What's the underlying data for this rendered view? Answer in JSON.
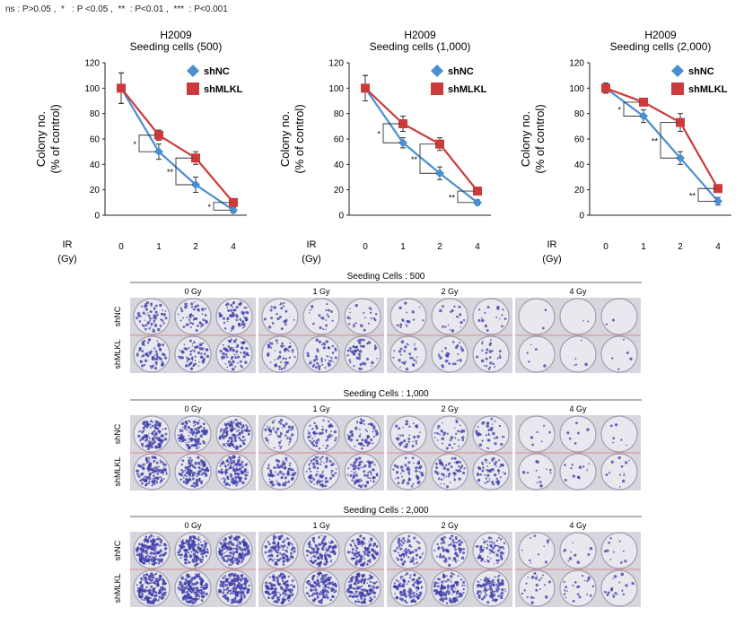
{
  "note": "ns : P>0.05 ,  *   : P <0.05 ,  **  : P<0.01 ,  ***  : P<0.001",
  "colors": {
    "shNC": "#4a8fd0",
    "shMLKL": "#cc3b3b",
    "axis": "#222222",
    "well": "#e8e8ee",
    "colony": "#3b3ba8"
  },
  "chart_data": [
    {
      "type": "line",
      "title": "H2009",
      "subtitle": "Seeding cells (500)",
      "ylabel": "Colony no.",
      "ylabel2": "(% of control)",
      "xlabel": "IR",
      "xlabel2": "(Gy)",
      "categories": [
        "0",
        "1",
        "2",
        "4"
      ],
      "ylim": [
        0,
        120
      ],
      "yticks": [
        0,
        20,
        40,
        60,
        80,
        100,
        120
      ],
      "series": [
        {
          "name": "shNC",
          "values": [
            100,
            50,
            24,
            4
          ],
          "err": [
            12,
            6,
            6,
            2
          ]
        },
        {
          "name": "shMLKL",
          "values": [
            100,
            63,
            45,
            10
          ],
          "err": [
            12,
            4,
            5,
            2
          ]
        }
      ],
      "sig": [
        "*",
        "**",
        "*"
      ]
    },
    {
      "type": "line",
      "title": "H2009",
      "subtitle": "Seeding cells (1,000)",
      "ylabel": "Colony no.",
      "ylabel2": "(% of control)",
      "xlabel": "IR",
      "xlabel2": "(Gy)",
      "categories": [
        "0",
        "1",
        "2",
        "4"
      ],
      "ylim": [
        0,
        120
      ],
      "yticks": [
        0,
        20,
        40,
        60,
        80,
        100,
        120
      ],
      "series": [
        {
          "name": "shNC",
          "values": [
            100,
            57,
            33,
            10
          ],
          "err": [
            10,
            4,
            5,
            2
          ]
        },
        {
          "name": "shMLKL",
          "values": [
            100,
            72,
            56,
            19
          ],
          "err": [
            10,
            6,
            5,
            2
          ]
        }
      ],
      "sig": [
        "*",
        "**",
        "**"
      ]
    },
    {
      "type": "line",
      "title": "H2009",
      "subtitle": "Seeding cells (2,000)",
      "ylabel": "Colony no.",
      "ylabel2": "(% of control)",
      "xlabel": "IR",
      "xlabel2": "(Gy)",
      "categories": [
        "0",
        "1",
        "2",
        "4"
      ],
      "ylim": [
        0,
        120
      ],
      "yticks": [
        0,
        20,
        40,
        60,
        80,
        100,
        120
      ],
      "series": [
        {
          "name": "shNC",
          "values": [
            100,
            78,
            45,
            11
          ],
          "err": [
            4,
            5,
            5,
            3
          ]
        },
        {
          "name": "shMLKL",
          "values": [
            100,
            89,
            73,
            21
          ],
          "err": [
            4,
            3,
            7,
            2
          ]
        }
      ],
      "sig": [
        "*",
        "**",
        "**"
      ]
    }
  ],
  "plates": [
    {
      "title": "Seeding Cells : 500",
      "rows": [
        "shNC",
        "shMLKL"
      ],
      "doses": [
        "0 Gy",
        "1 Gy",
        "2 Gy",
        "4 Gy"
      ],
      "density": [
        [
          60,
          70
        ],
        [
          22,
          48
        ],
        [
          18,
          28
        ],
        [
          2,
          5
        ]
      ]
    },
    {
      "title": "Seeding Cells : 1,000",
      "rows": [
        "shNC",
        "shMLKL"
      ],
      "doses": [
        "0 Gy",
        "1 Gy",
        "2 Gy",
        "4 Gy"
      ],
      "density": [
        [
          120,
          130
        ],
        [
          55,
          80
        ],
        [
          35,
          55
        ],
        [
          6,
          12
        ]
      ]
    },
    {
      "title": "Seeding Cells : 2,000",
      "rows": [
        "shNC",
        "shMLKL"
      ],
      "doses": [
        "0 Gy",
        "1 Gy",
        "2 Gy",
        "4 Gy"
      ],
      "density": [
        [
          170,
          180
        ],
        [
          120,
          150
        ],
        [
          70,
          110
        ],
        [
          10,
          22
        ]
      ]
    }
  ]
}
